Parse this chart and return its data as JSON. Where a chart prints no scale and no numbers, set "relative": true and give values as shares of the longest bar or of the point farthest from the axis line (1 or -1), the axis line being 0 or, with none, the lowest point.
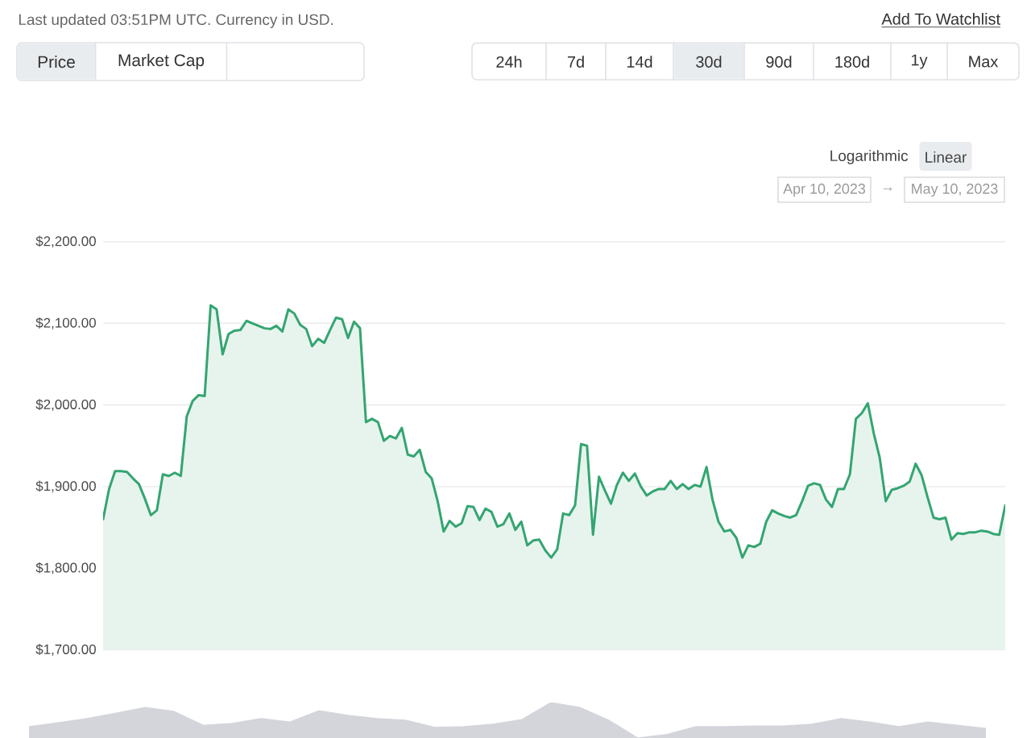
{
  "chart_data": [
    {
      "type": "area",
      "annotations": [
        "Last updated 03:51PM UTC. Currency in USD.",
        "Price",
        "Market Cap",
        "Add To Watchlist",
        "24h",
        "7d",
        "14d",
        "30d",
        "90d",
        "180d",
        "1y",
        "Max",
        "Logarithmic",
        "Linear",
        "Apr 10, 2023",
        "→",
        "May 10, 2023"
      ],
      "categories": [
        null,
        null,
        null,
        null,
        null,
        null,
        null,
        null,
        null,
        null,
        null,
        null,
        null,
        null,
        null,
        null,
        null,
        null,
        null,
        null,
        null,
        null,
        null,
        null,
        null,
        null,
        null,
        null,
        null,
        null,
        null,
        null,
        null,
        null,
        null,
        null,
        null,
        null,
        null,
        null,
        null,
        null,
        null,
        null,
        null,
        null,
        null,
        null,
        null,
        null,
        null,
        null,
        null,
        null,
        null,
        null,
        null,
        null,
        null,
        null,
        null,
        null,
        null,
        null,
        null,
        null,
        null,
        null,
        null,
        null,
        null,
        null,
        null,
        null,
        null,
        null,
        null,
        null,
        null,
        null,
        null,
        null,
        null,
        null,
        null,
        null,
        null,
        null,
        null,
        null,
        null,
        null,
        null,
        null,
        null,
        null,
        null,
        null,
        null,
        null,
        null,
        null,
        null,
        null,
        null,
        null,
        null,
        null,
        null,
        null,
        null,
        null,
        null,
        null,
        null,
        null,
        null,
        null,
        null,
        null,
        null,
        null,
        null,
        null,
        null,
        null,
        null,
        null,
        null,
        null,
        null,
        null,
        null,
        null,
        null,
        null,
        null,
        null,
        null,
        null,
        null,
        null,
        null,
        null,
        null,
        null,
        null,
        null,
        null,
        null,
        null,
        null
      ],
      "values": [
        1860,
        1897,
        1919,
        1919,
        1918,
        1910,
        1903,
        1885,
        1865,
        1871,
        1915,
        1913,
        1917,
        1913,
        1986,
        2005,
        2012,
        2011,
        2122,
        2117,
        2062,
        2087,
        2091,
        2092,
        2103,
        2100,
        2097,
        2094,
        2093,
        2097,
        2090,
        2117,
        2112,
        2098,
        2093,
        2072,
        2081,
        2076,
        2092,
        2107,
        2105,
        2082,
        2102,
        2094,
        1979,
        1983,
        1979,
        1956,
        1962,
        1959,
        1972,
        1939,
        1937,
        1945,
        1918,
        1910,
        1882,
        1845,
        1858,
        1851,
        1855,
        1876,
        1875,
        1859,
        1873,
        1869,
        1851,
        1854,
        1867,
        1847,
        1857,
        1828,
        1834,
        1835,
        1822,
        1813,
        1823,
        1867,
        1865,
        1877,
        1952,
        1950,
        1841,
        1912,
        1895,
        1879,
        1902,
        1917,
        1907,
        1916,
        1900,
        1889,
        1894,
        1897,
        1897,
        1907,
        1897,
        1903,
        1897,
        1902,
        1900,
        1924,
        1884,
        1857,
        1845,
        1847,
        1837,
        1813,
        1828,
        1826,
        1830,
        1857,
        1871,
        1867,
        1864,
        1862,
        1865,
        1882,
        1901,
        1904,
        1902,
        1884,
        1875,
        1897,
        1897,
        1915,
        1983,
        1990,
        2002,
        1965,
        1935,
        1882,
        1896,
        1898,
        1901,
        1906,
        1928,
        1914,
        1887,
        1862,
        1860,
        1862,
        1835,
        1843,
        1842,
        1844,
        1844,
        1846,
        1845,
        1842,
        1841,
        1877
      ],
      "color": "#34a571",
      "ylim": [
        1700,
        2200
      ],
      "yticks": [
        {
          "value": 1700,
          "label": "$1,700.00"
        },
        {
          "value": 1800,
          "label": "$1,800.00"
        },
        {
          "value": 1900,
          "label": "$1,900.00"
        },
        {
          "value": 2000,
          "label": "$2,000.00"
        },
        {
          "value": 2100,
          "label": "$2,100.00"
        },
        {
          "value": 2200,
          "label": "$2,200.00"
        }
      ],
      "grid": "y",
      "tick_labels": "y"
    },
    {
      "type": "area",
      "relative": true,
      "categories": [
        null,
        null,
        null,
        null,
        null,
        null,
        null,
        null,
        null,
        null,
        null,
        null,
        null,
        null,
        null,
        null,
        null,
        null,
        null,
        null,
        null,
        null,
        null,
        null,
        null,
        null,
        null,
        null,
        null,
        null,
        null,
        null,
        null,
        null
      ],
      "values": [
        0.32,
        0.43,
        0.55,
        0.7,
        0.86,
        0.75,
        0.36,
        0.41,
        0.55,
        0.45,
        0.77,
        0.64,
        0.55,
        0.5,
        0.3,
        0.32,
        0.39,
        0.52,
        1,
        0.86,
        0.5,
        0,
        0.1,
        0.32,
        0.32,
        0.34,
        0.34,
        0.39,
        0.55,
        0.45,
        0.32,
        0.45,
        0.36,
        0.27
      ],
      "color": "#d3d5db"
    }
  ]
}
